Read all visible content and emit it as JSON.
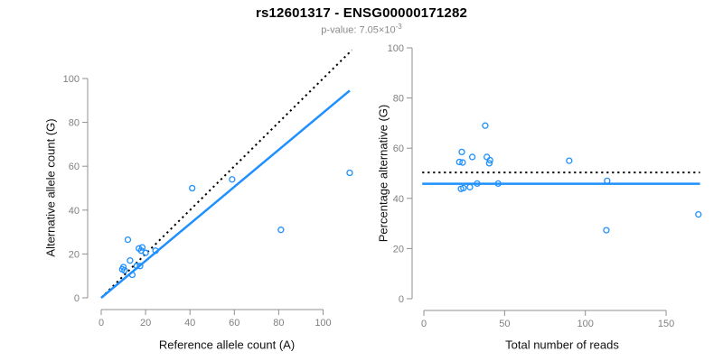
{
  "header": {
    "title": "rs12601317 - ENSG00000171282",
    "pvalue_prefix": "p-value: 7.05×10",
    "pvalue_exponent": "-3"
  },
  "colors": {
    "accent_blue": "#1E90FF",
    "dotted_line": "#000000",
    "axis_line": "#909090",
    "tick_label": "#808080",
    "axis_title": "#111111",
    "title": "#000000",
    "subtitle": "#8A8A8A",
    "background": "#FFFFFF"
  },
  "chart_data": [
    {
      "type": "scatter",
      "panel": "left",
      "xlabel": "Reference allele count (A)",
      "ylabel": "Alternative allele count (G)",
      "xticks": [
        0,
        20,
        40,
        60,
        80,
        100
      ],
      "yticks": [
        0,
        20,
        40,
        60,
        80,
        100
      ],
      "xlim": [
        0,
        115
      ],
      "ylim": [
        0,
        113
      ],
      "grid": false,
      "marker": "open-circle",
      "points": [
        [
          9.5,
          13
        ],
        [
          10,
          14
        ],
        [
          10.5,
          12.5
        ],
        [
          12,
          26.5
        ],
        [
          13,
          17
        ],
        [
          14,
          10.5
        ],
        [
          16,
          14.5
        ],
        [
          17,
          22.5
        ],
        [
          17.5,
          14.5
        ],
        [
          18,
          21.5
        ],
        [
          18.5,
          23
        ],
        [
          20,
          20.5
        ],
        [
          24.5,
          21.5
        ],
        [
          41,
          50
        ],
        [
          59,
          54
        ],
        [
          81,
          31
        ],
        [
          112,
          57
        ]
      ],
      "lines": [
        {
          "name": "identity-line",
          "style": "dotted",
          "color": "#000000",
          "x1": 0,
          "y1": 0,
          "x2": 113,
          "y2": 113
        },
        {
          "name": "regression-line",
          "style": "solid",
          "color": "#1E90FF",
          "x1": 0,
          "y1": 0,
          "x2": 112,
          "y2": 94.5
        }
      ]
    },
    {
      "type": "scatter",
      "panel": "right",
      "xlabel": "Total number of reads",
      "ylabel": "Percentage alternative (G)",
      "xticks": [
        0,
        50,
        100,
        150
      ],
      "yticks": [
        0,
        20,
        40,
        60,
        80,
        100
      ],
      "xlim": [
        0,
        172
      ],
      "ylim": [
        0,
        100
      ],
      "grid": false,
      "marker": "open-circle",
      "points": [
        [
          22,
          54.5
        ],
        [
          24,
          54.3
        ],
        [
          23.5,
          58.5
        ],
        [
          30,
          56.5
        ],
        [
          38,
          69
        ],
        [
          39,
          56.5
        ],
        [
          41,
          55.2
        ],
        [
          40.5,
          54
        ],
        [
          33,
          45.9
        ],
        [
          46,
          45.9
        ],
        [
          23,
          43.8
        ],
        [
          24.5,
          44.1
        ],
        [
          28.5,
          44.5
        ],
        [
          90,
          55
        ],
        [
          113.5,
          47
        ],
        [
          113,
          27.3
        ],
        [
          170,
          33.6
        ]
      ],
      "lines": [
        {
          "name": "expected-50pct-line",
          "style": "dotted",
          "color": "#000000",
          "x1": -1,
          "y1": 50.3,
          "x2": 171,
          "y2": 50.3
        },
        {
          "name": "mean-percentage-line",
          "style": "solid",
          "color": "#1E90FF",
          "x1": -1,
          "y1": 45.8,
          "x2": 171,
          "y2": 45.8
        }
      ]
    }
  ]
}
